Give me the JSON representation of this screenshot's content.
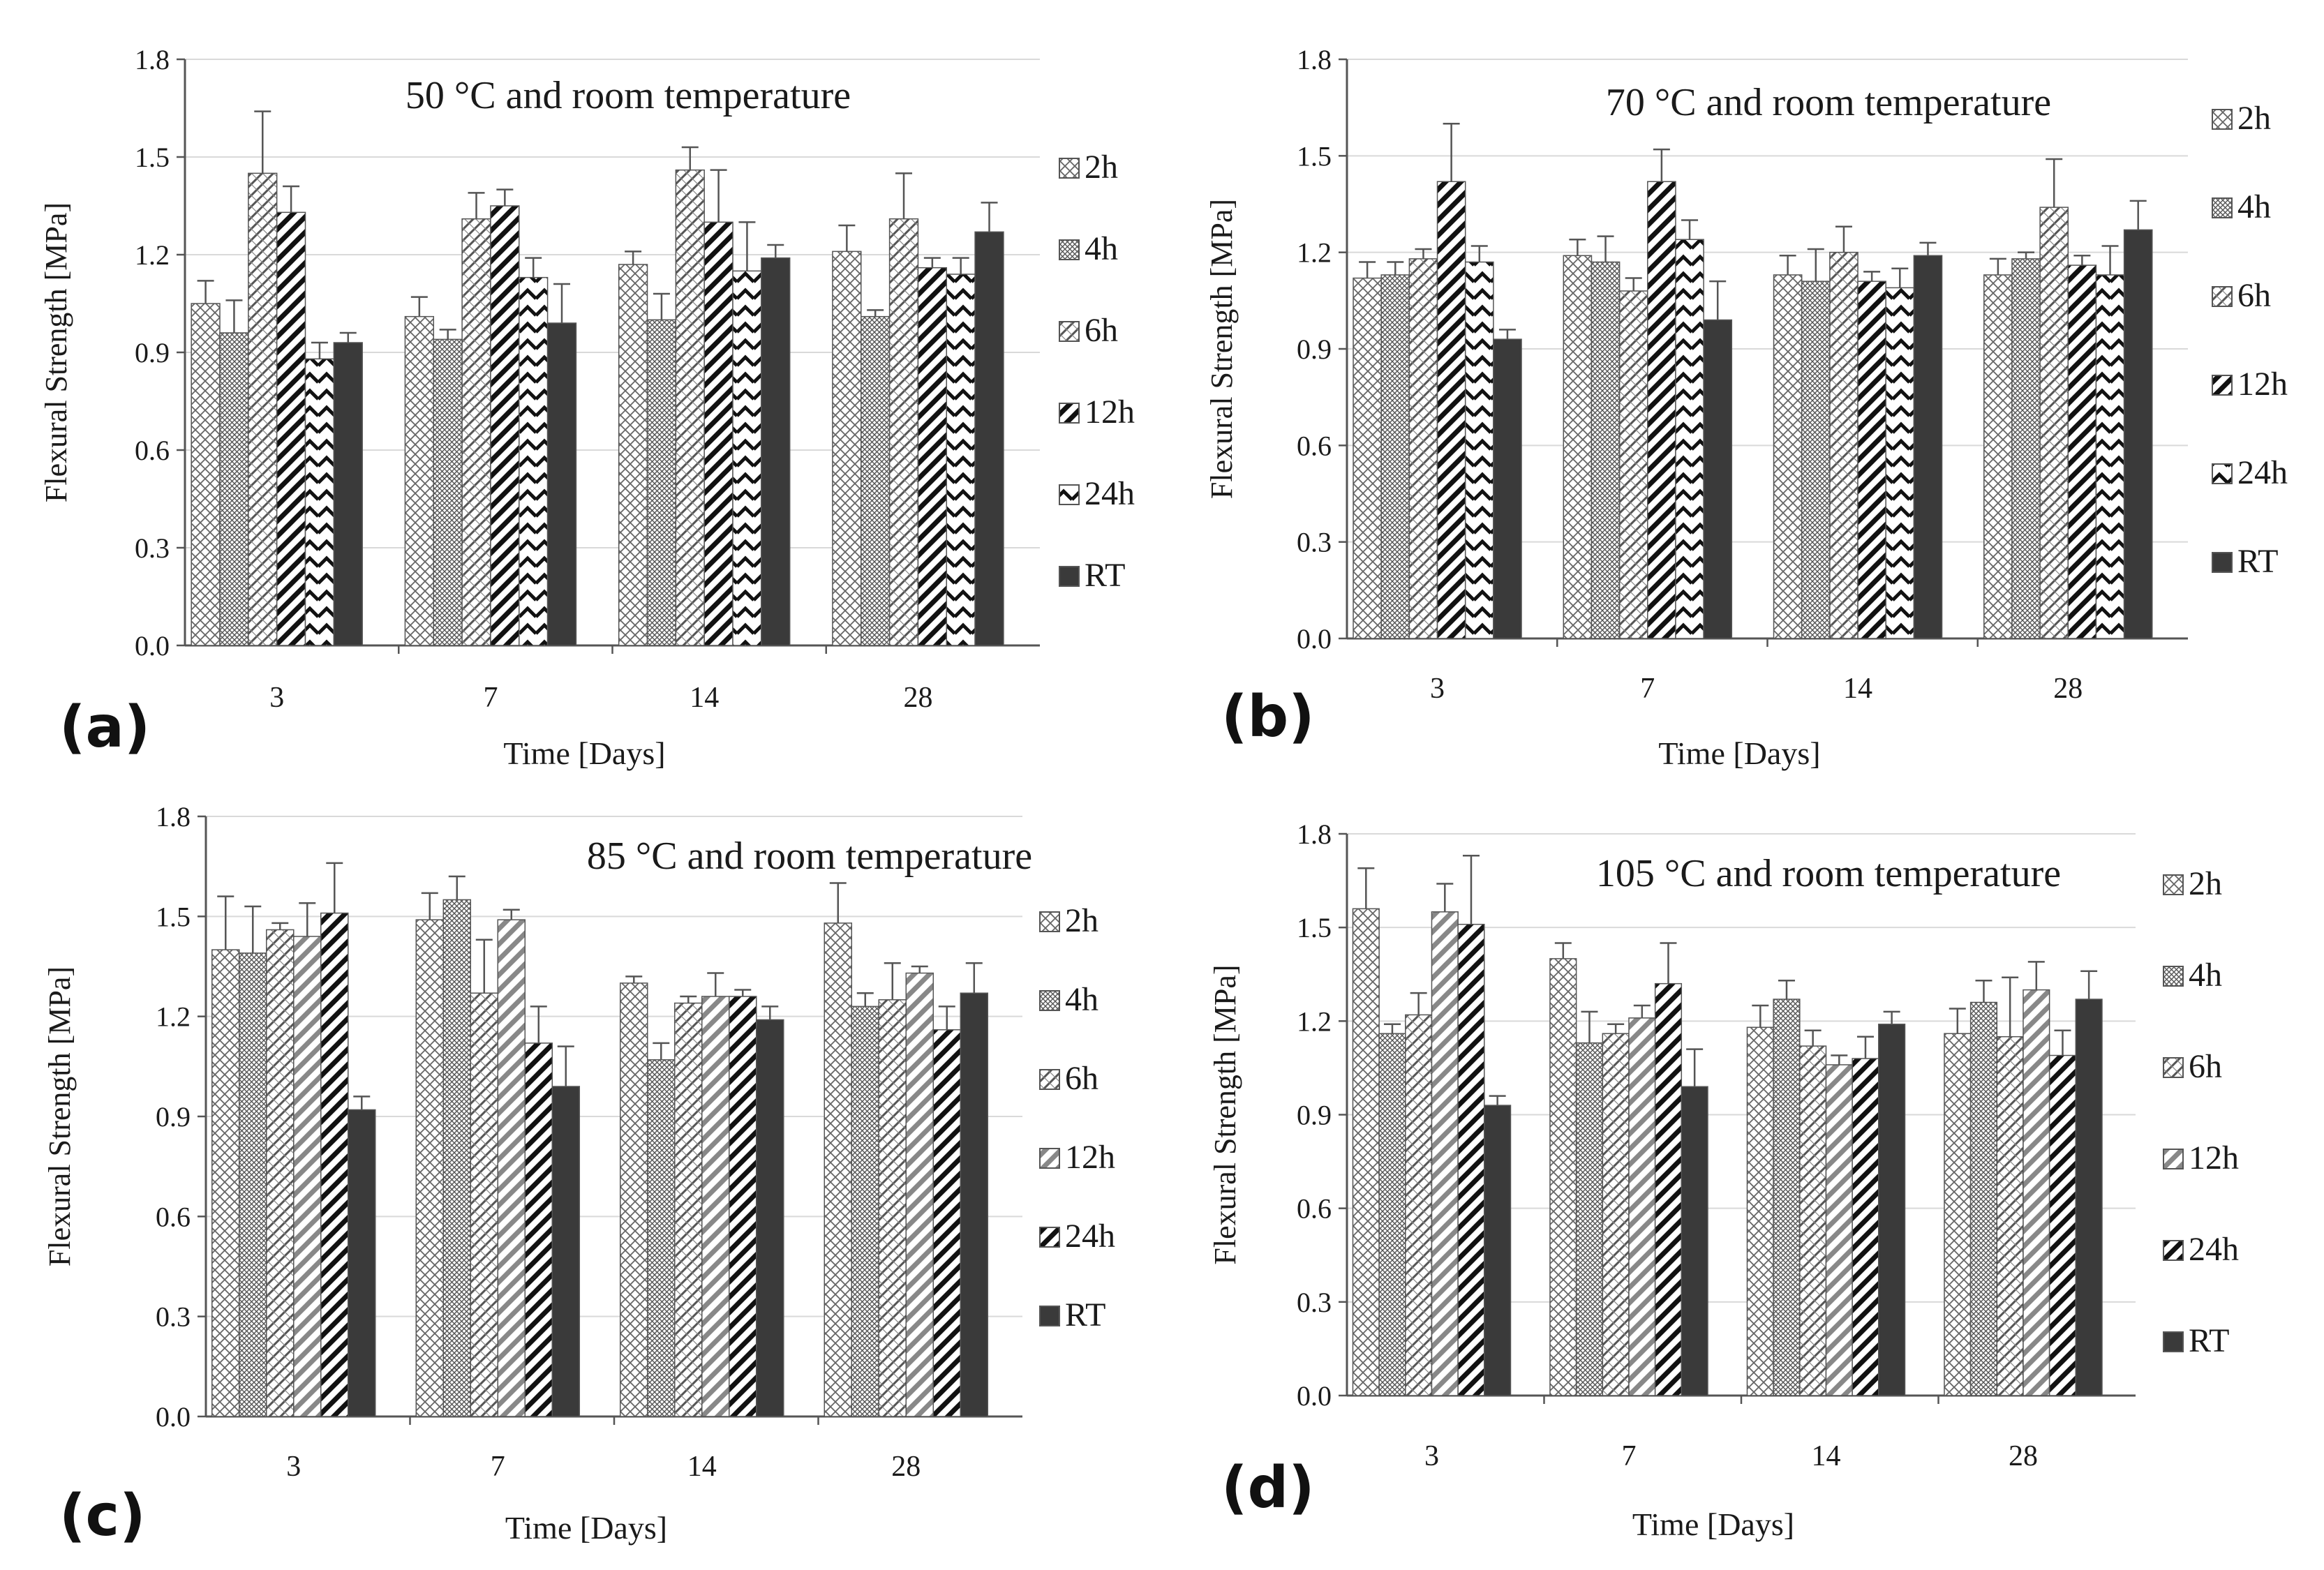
{
  "figure": {
    "description_panels": [
      "(a)",
      "(b)",
      "(c)",
      "(d)"
    ]
  },
  "colors": {
    "axis": "#555555",
    "grid": "#d9d9d9",
    "bar_stroke": "#555555",
    "rt_fill": "#3a3a3a",
    "text": "#1a1a1a"
  },
  "chart_data": [
    {
      "type": "bar",
      "panel_label": "(a)",
      "title": "50 °C and room temperature",
      "xlabel": "Time [Days]",
      "ylabel": "Flexural Strength [MPa]",
      "ylim": [
        0,
        1.8
      ],
      "yticks": [
        "0.0",
        "0.3",
        "0.6",
        "0.9",
        "1.2",
        "1.5",
        "1.8"
      ],
      "grid": true,
      "legend_position": "right",
      "categories": [
        "3",
        "7",
        "14",
        "28"
      ],
      "series": [
        {
          "name": "2h",
          "pattern": "crosshatch",
          "values": [
            1.05,
            1.01,
            1.17,
            1.21
          ],
          "errors": [
            0.07,
            0.06,
            0.04,
            0.08
          ]
        },
        {
          "name": "4h",
          "pattern": "dense",
          "values": [
            0.96,
            0.94,
            1.0,
            1.01
          ],
          "errors": [
            0.1,
            0.03,
            0.08,
            0.02
          ]
        },
        {
          "name": "6h",
          "pattern": "diagcross",
          "values": [
            1.45,
            1.31,
            1.46,
            1.31
          ],
          "errors": [
            0.19,
            0.08,
            0.07,
            0.14
          ]
        },
        {
          "name": "12h",
          "pattern": "thickdiag",
          "values": [
            1.33,
            1.35,
            1.3,
            1.16
          ],
          "errors": [
            0.08,
            0.05,
            0.16,
            0.03
          ]
        },
        {
          "name": "24h",
          "pattern": "chevron",
          "values": [
            0.88,
            1.13,
            1.15,
            1.14
          ],
          "errors": [
            0.05,
            0.06,
            0.15,
            0.05
          ]
        },
        {
          "name": "RT",
          "pattern": "solid",
          "values": [
            0.93,
            0.99,
            1.19,
            1.27
          ],
          "errors": [
            0.03,
            0.12,
            0.04,
            0.09
          ]
        }
      ]
    },
    {
      "type": "bar",
      "panel_label": "(b)",
      "title": "70 °C and room temperature",
      "xlabel": "Time [Days]",
      "ylabel": "Flexural Strength [MPa]",
      "ylim": [
        0,
        1.8
      ],
      "yticks": [
        "0.0",
        "0.3",
        "0.6",
        "0.9",
        "1.2",
        "1.5",
        "1.8"
      ],
      "grid": true,
      "legend_position": "right",
      "categories": [
        "3",
        "7",
        "14",
        "28"
      ],
      "series": [
        {
          "name": "2h",
          "pattern": "crosshatch",
          "values": [
            1.12,
            1.19,
            1.13,
            1.13
          ],
          "errors": [
            0.05,
            0.05,
            0.06,
            0.05
          ]
        },
        {
          "name": "4h",
          "pattern": "dense",
          "values": [
            1.13,
            1.17,
            1.11,
            1.18
          ],
          "errors": [
            0.04,
            0.08,
            0.1,
            0.02
          ]
        },
        {
          "name": "6h",
          "pattern": "diagcross",
          "values": [
            1.18,
            1.08,
            1.2,
            1.34
          ],
          "errors": [
            0.03,
            0.04,
            0.08,
            0.15
          ]
        },
        {
          "name": "12h",
          "pattern": "thickdiag",
          "values": [
            1.42,
            1.42,
            1.11,
            1.16
          ],
          "errors": [
            0.18,
            0.1,
            0.03,
            0.03
          ]
        },
        {
          "name": "24h",
          "pattern": "chevron",
          "values": [
            1.17,
            1.24,
            1.09,
            1.13
          ],
          "errors": [
            0.05,
            0.06,
            0.06,
            0.09
          ]
        },
        {
          "name": "RT",
          "pattern": "solid",
          "values": [
            0.93,
            0.99,
            1.19,
            1.27
          ],
          "errors": [
            0.03,
            0.12,
            0.04,
            0.09
          ]
        }
      ]
    },
    {
      "type": "bar",
      "panel_label": "(c)",
      "title": "85 °C and room temperature",
      "xlabel": "Time [Days]",
      "ylabel": "Flexural Strength [MPa]",
      "ylim": [
        0,
        1.8
      ],
      "yticks": [
        "0.0",
        "0.3",
        "0.6",
        "0.9",
        "1.2",
        "1.5",
        "1.8"
      ],
      "grid": true,
      "legend_position": "right",
      "categories": [
        "3",
        "7",
        "14",
        "28"
      ],
      "series": [
        {
          "name": "2h",
          "pattern": "crosshatch",
          "values": [
            1.4,
            1.49,
            1.3,
            1.48
          ],
          "errors": [
            0.16,
            0.08,
            0.02,
            0.12
          ]
        },
        {
          "name": "4h",
          "pattern": "dense",
          "values": [
            1.39,
            1.55,
            1.07,
            1.23
          ],
          "errors": [
            0.14,
            0.07,
            0.05,
            0.04
          ]
        },
        {
          "name": "6h",
          "pattern": "diagcross",
          "values": [
            1.46,
            1.27,
            1.24,
            1.25
          ],
          "errors": [
            0.02,
            0.16,
            0.02,
            0.11
          ]
        },
        {
          "name": "12h",
          "pattern": "grayzigzag",
          "values": [
            1.44,
            1.49,
            1.26,
            1.33
          ],
          "errors": [
            0.1,
            0.03,
            0.07,
            0.02
          ]
        },
        {
          "name": "24h",
          "pattern": "thickdiag",
          "values": [
            1.51,
            1.12,
            1.26,
            1.16
          ],
          "errors": [
            0.15,
            0.11,
            0.02,
            0.07
          ]
        },
        {
          "name": "RT",
          "pattern": "solid",
          "values": [
            0.92,
            0.99,
            1.19,
            1.27
          ],
          "errors": [
            0.04,
            0.12,
            0.04,
            0.09
          ]
        }
      ]
    },
    {
      "type": "bar",
      "panel_label": "(d)",
      "title": "105 °C and room temperature",
      "xlabel": "Time [Days]",
      "ylabel": "Flexural Strength [MPa]",
      "ylim": [
        0,
        1.8
      ],
      "yticks": [
        "0.0",
        "0.3",
        "0.6",
        "0.9",
        "1.2",
        "1.5",
        "1.8"
      ],
      "grid": true,
      "legend_position": "right",
      "categories": [
        "3",
        "7",
        "14",
        "28"
      ],
      "series": [
        {
          "name": "2h",
          "pattern": "crosshatch",
          "values": [
            1.56,
            1.4,
            1.18,
            1.16
          ],
          "errors": [
            0.13,
            0.05,
            0.07,
            0.08
          ]
        },
        {
          "name": "4h",
          "pattern": "dense",
          "values": [
            1.16,
            1.13,
            1.27,
            1.26
          ],
          "errors": [
            0.03,
            0.1,
            0.06,
            0.07
          ]
        },
        {
          "name": "6h",
          "pattern": "diagcross",
          "values": [
            1.22,
            1.16,
            1.12,
            1.15
          ],
          "errors": [
            0.07,
            0.03,
            0.05,
            0.19
          ]
        },
        {
          "name": "12h",
          "pattern": "grayzigzag",
          "values": [
            1.55,
            1.21,
            1.06,
            1.3
          ],
          "errors": [
            0.09,
            0.04,
            0.03,
            0.09
          ]
        },
        {
          "name": "24h",
          "pattern": "thickdiag",
          "values": [
            1.51,
            1.32,
            1.08,
            1.09
          ],
          "errors": [
            0.22,
            0.13,
            0.07,
            0.08
          ]
        },
        {
          "name": "RT",
          "pattern": "solid",
          "values": [
            0.93,
            0.99,
            1.19,
            1.27
          ],
          "errors": [
            0.03,
            0.12,
            0.04,
            0.09
          ]
        }
      ]
    }
  ]
}
